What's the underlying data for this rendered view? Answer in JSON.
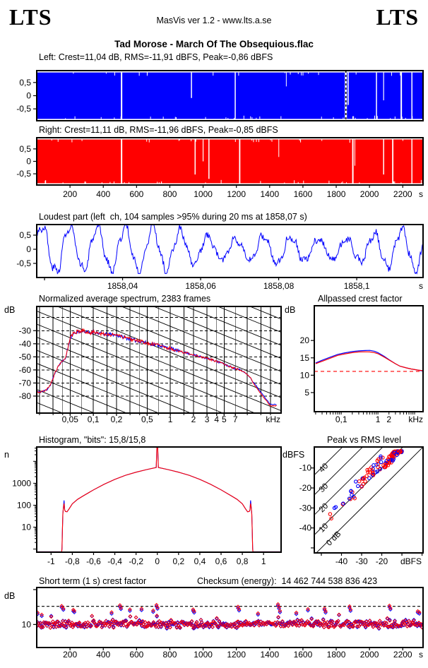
{
  "header": {
    "logo_left": "LTS",
    "logo_right": "LTS",
    "app_line": "MasVis ver 1.2 - www.lts.a.se",
    "title": "Tad Morose - March Of The Obsequious.flac"
  },
  "chart_data": {
    "time_axis": {
      "min": 0,
      "max": 2322,
      "ticks": [
        200,
        400,
        600,
        800,
        1000,
        1200,
        1400,
        1600,
        1800,
        2000,
        2200
      ],
      "tick_labels": [
        "200",
        "400",
        "600",
        "800",
        "1000",
        "1200",
        "1400",
        "1600",
        "1800",
        "2000",
        "2200"
      ],
      "unit": "s"
    },
    "wave_left": {
      "type": "area",
      "title": "Left: Crest=11,04 dB, RMS=-11,91 dBFS, Peak=-0,86 dBFS",
      "color": "#0000ff",
      "ylim": [
        -0.95,
        0.95
      ],
      "fill_amp": 0.88,
      "yticks": [
        0.5,
        0,
        -0.5
      ],
      "ytick_labels": [
        "0,5",
        "0",
        "-0,5"
      ],
      "gaps": [
        [
          510,
          2,
          1
        ],
        [
          930,
          1.5,
          0.55
        ],
        [
          1193,
          1.5,
          1
        ],
        [
          1500,
          1,
          0.3
        ],
        [
          1872,
          1.5,
          0.7
        ],
        [
          2042,
          1.5,
          1
        ],
        [
          2085,
          1.2,
          0.6
        ],
        [
          2191,
          2,
          1
        ],
        [
          2255,
          1.5,
          1
        ]
      ],
      "marker_t": 1858.07,
      "noise_seed": 9
    },
    "wave_right": {
      "type": "area",
      "title": "Right: Crest=11,11 dB, RMS=-11,96 dBFS, Peak=-0,85 dBFS",
      "color": "#ff0000",
      "ylim": [
        -0.95,
        0.95
      ],
      "fill_amp": 0.88,
      "yticks": [
        0.5,
        0,
        -0.5
      ],
      "ytick_labels": [
        "0,5",
        "0",
        "-0,5"
      ],
      "gaps": [
        [
          510,
          2,
          1
        ],
        [
          952,
          1.5,
          0.8
        ],
        [
          1000,
          1.2,
          0.5
        ],
        [
          1035,
          1.5,
          0.9
        ],
        [
          1220,
          1.8,
          1
        ],
        [
          1455,
          1,
          0.4
        ],
        [
          1900,
          2,
          1
        ],
        [
          1912,
          1,
          0.6
        ],
        [
          2085,
          1.5,
          0.8
        ],
        [
          2140,
          1.8,
          1
        ],
        [
          2255,
          1.5,
          1
        ]
      ],
      "noise_seed": 17
    },
    "loudest": {
      "type": "line",
      "title": "Loudest part (left  ch, 104 samples >95% during 20 ms at 1858,07 s)",
      "color": "#0000ff",
      "ylim": [
        -1.0,
        0.875
      ],
      "yticks": [
        0.5,
        0,
        -0.5
      ],
      "ytick_labels": [
        "0,5",
        "0",
        "-0,5"
      ],
      "xlim": [
        1858.018,
        1858.117
      ],
      "xticks": [
        1858.02,
        1858.04,
        1858.06,
        1858.08,
        1858.1
      ],
      "xtick_labels": [
        "",
        "1858,04",
        "1858,06",
        "1858,08",
        "1858,1"
      ],
      "xunit": "s",
      "seed": 3
    },
    "spectrum": {
      "type": "line",
      "title": "Normalized average spectrum, 2383 frames",
      "ylabel": "dB",
      "xunit": "kHz",
      "xlim": [
        0.0184,
        27.5
      ],
      "ylim": [
        -93,
        -11.5
      ],
      "yticks": [
        -30,
        -40,
        -50,
        -60,
        -70,
        -80
      ],
      "ytick_labels": [
        "-30",
        "-40",
        "-50",
        "-60",
        "-70",
        "-80"
      ],
      "grid_dashed_y": [
        -20,
        -30,
        -40,
        -50,
        -60,
        -70,
        -80
      ],
      "grid_v": [
        0.02,
        0.03,
        0.04,
        0.05,
        0.07,
        0.1,
        0.15,
        0.2,
        0.3,
        0.4,
        0.5,
        0.7,
        1,
        1.5,
        2,
        3,
        4,
        5,
        7,
        10,
        15,
        20
      ],
      "xticks": [
        0.05,
        0.1,
        0.2,
        0.5,
        1,
        2,
        3,
        4,
        5,
        7
      ],
      "xtick_labels": [
        "0,05",
        "0,1",
        "0,2",
        "0,5",
        "1",
        "2",
        "3",
        "4",
        "5",
        "7"
      ],
      "diag": {
        "slope_db_per_decade": -24,
        "intercepts": [
          -85,
          -75,
          -65,
          -55,
          -45,
          -35,
          -25,
          -15,
          -5,
          5,
          15,
          25,
          35,
          45,
          55,
          65
        ]
      },
      "noise": {
        "seed": 11,
        "mid": 1.4,
        "hi": 0.8,
        "lo": 0.35
      },
      "series": [
        {
          "name": "left",
          "color": "#0000ff",
          "hf_offset": 1.2
        },
        {
          "name": "right",
          "color": "#ff0000",
          "hf_offset": 0
        }
      ],
      "points": [
        [
          0.0184,
          -77
        ],
        [
          0.022,
          -76.5
        ],
        [
          0.025,
          -75
        ],
        [
          0.028,
          -71
        ],
        [
          0.032,
          -62
        ],
        [
          0.036,
          -56
        ],
        [
          0.04,
          -53
        ],
        [
          0.043,
          -52
        ],
        [
          0.046,
          -45
        ],
        [
          0.05,
          -36
        ],
        [
          0.053,
          -33
        ],
        [
          0.058,
          -32
        ],
        [
          0.062,
          -30.5
        ],
        [
          0.068,
          -31.5
        ],
        [
          0.072,
          -29.5
        ],
        [
          0.08,
          -31
        ],
        [
          0.09,
          -32
        ],
        [
          0.1,
          -30.5
        ],
        [
          0.11,
          -31.5
        ],
        [
          0.13,
          -32.5
        ],
        [
          0.15,
          -33
        ],
        [
          0.18,
          -33
        ],
        [
          0.2,
          -33.5
        ],
        [
          0.25,
          -35
        ],
        [
          0.3,
          -36.5
        ],
        [
          0.35,
          -37.5
        ],
        [
          0.4,
          -38
        ],
        [
          0.5,
          -39.5
        ],
        [
          0.6,
          -40.5
        ],
        [
          0.7,
          -41
        ],
        [
          0.8,
          -42
        ],
        [
          0.9,
          -43
        ],
        [
          1,
          -43.5
        ],
        [
          1.2,
          -45
        ],
        [
          1.5,
          -46.5
        ],
        [
          2,
          -48.5
        ],
        [
          2.5,
          -50
        ],
        [
          3,
          -51
        ],
        [
          4,
          -53.5
        ],
        [
          5,
          -55.5
        ],
        [
          6,
          -57.5
        ],
        [
          7,
          -59
        ],
        [
          8,
          -60
        ],
        [
          9,
          -61.5
        ],
        [
          10,
          -63.5
        ],
        [
          11,
          -66
        ],
        [
          12,
          -70
        ],
        [
          13,
          -73
        ],
        [
          14,
          -76
        ],
        [
          15,
          -78
        ],
        [
          16,
          -80.5
        ],
        [
          17,
          -82.5
        ],
        [
          18,
          -84
        ],
        [
          19,
          -86
        ],
        [
          20,
          -87.5
        ]
      ]
    },
    "allpass": {
      "type": "line",
      "title": "Allpassed crest factor",
      "ylabel": "dB",
      "xunit": "kHz",
      "xlim": [
        0.0184,
        17
      ],
      "ylim": [
        -0.5,
        30
      ],
      "yticks": [
        5,
        10,
        15,
        20
      ],
      "ytick_labels": [
        "5",
        "10",
        "15",
        "20"
      ],
      "xticks": [
        0.1,
        1,
        2
      ],
      "xtick_labels": [
        "0,1",
        "1",
        "2"
      ],
      "dashed_y": 11.1,
      "dashed_color": "#ff0000",
      "series": [
        {
          "color": "#0000ff",
          "points": [
            [
              0.02,
              13.5
            ],
            [
              0.03,
              14.3
            ],
            [
              0.05,
              15.2
            ],
            [
              0.08,
              16.0
            ],
            [
              0.12,
              16.4
            ],
            [
              0.2,
              16.8
            ],
            [
              0.3,
              17.0
            ],
            [
              0.45,
              17.1
            ],
            [
              0.6,
              17.15
            ],
            [
              0.8,
              16.9
            ],
            [
              1,
              16.5
            ],
            [
              1.5,
              15.4
            ],
            [
              2,
              14.5
            ],
            [
              3,
              13.3
            ],
            [
              4,
              12.6
            ],
            [
              6,
              12.1
            ],
            [
              8,
              11.8
            ],
            [
              12,
              11.5
            ],
            [
              17,
              11.2
            ]
          ]
        },
        {
          "color": "#ff0000",
          "points": [
            [
              0.02,
              13.3
            ],
            [
              0.03,
              14.0
            ],
            [
              0.05,
              14.9
            ],
            [
              0.08,
              15.7
            ],
            [
              0.12,
              16.1
            ],
            [
              0.2,
              16.5
            ],
            [
              0.3,
              16.7
            ],
            [
              0.45,
              16.75
            ],
            [
              0.6,
              16.7
            ],
            [
              0.8,
              16.5
            ],
            [
              1,
              16.2
            ],
            [
              1.5,
              15.2
            ],
            [
              2,
              14.4
            ],
            [
              3,
              13.3
            ],
            [
              4,
              12.6
            ],
            [
              6,
              12.1
            ],
            [
              8,
              11.8
            ],
            [
              12,
              11.5
            ],
            [
              17,
              11.3
            ]
          ]
        }
      ]
    },
    "histogram": {
      "type": "line",
      "title": "Histogram, \"bits\": 15,8/15,8",
      "ylabel": "n",
      "xlim": [
        -1.135,
        1.165
      ],
      "ylim_log": [
        0.72,
        45000
      ],
      "yticks": [
        10,
        100,
        1000
      ],
      "ytick_labels": [
        "10",
        "100",
        "1000"
      ],
      "xticks": [
        -1,
        -0.8,
        -0.6,
        -0.4,
        -0.2,
        0,
        0.2,
        0.4,
        0.6,
        0.8,
        1
      ],
      "xtick_labels": [
        "-1",
        "-0,8",
        "-0,6",
        "-0,4",
        "-0,2",
        "0",
        "0,2",
        "0,4",
        "0,6",
        "0,8",
        "1"
      ],
      "baseline": 0.75,
      "spike": {
        "half_width": 0.004,
        "top": 43000,
        "shoulder_x": 0.01,
        "shoulder_v": 5200
      },
      "dome": [
        [
          0.1,
          4200
        ],
        [
          0.2,
          3200
        ],
        [
          0.3,
          2300
        ],
        [
          0.4,
          1500
        ],
        [
          0.5,
          900
        ],
        [
          0.6,
          500
        ],
        [
          0.7,
          260
        ],
        [
          0.75,
          185
        ],
        [
          0.8,
          115
        ],
        [
          0.83,
          68
        ],
        [
          0.85,
          50
        ],
        [
          0.865,
          52
        ],
        [
          0.872,
          60
        ],
        [
          0.878,
          -1
        ],
        [
          0.884,
          80
        ],
        [
          0.889,
          40
        ],
        [
          0.893,
          8
        ],
        [
          0.897,
          1.1
        ],
        [
          0.9,
          0.75
        ]
      ],
      "series": [
        {
          "color": "#0000ff",
          "edge_spike": 165
        },
        {
          "color": "#ff0000",
          "edge_spike": 120
        }
      ]
    },
    "peak_rms": {
      "type": "scatter",
      "title": "Peak vs RMS level",
      "ylabel": "dBFS",
      "xunit": "dBFS",
      "xlim": [
        -53.5,
        0.5
      ],
      "ylim": [
        -52.5,
        0.5
      ],
      "xticks": [
        -50,
        -40,
        -30,
        -20,
        -10,
        0
      ],
      "xtick_labels": [
        "",
        "-40",
        "-30",
        "-20",
        "",
        ""
      ],
      "yticks": [
        -10,
        -20,
        -30,
        -40,
        -50
      ],
      "ytick_labels": [
        "-10",
        "-20",
        "-30",
        "-40",
        ""
      ],
      "crest_lines": [
        0,
        10,
        20,
        30,
        40
      ],
      "crest_labels": [
        "0 dB",
        "10",
        "20",
        "30",
        "40"
      ],
      "scatter_seed": 21,
      "counts": {
        "cluster": 70,
        "mid": 40,
        "tail": 14
      },
      "colors": {
        "a": "#ff0000",
        "b": "#0000ff"
      }
    },
    "short_term": {
      "type": "scatter",
      "title": "Short term (1 s) crest factor",
      "checksum": "Checksum (energy):  14 462 744 538 836 423",
      "ylabel": "dB",
      "ylim": [
        3.4,
        20.6
      ],
      "ytick": 10,
      "ytick_label": "10",
      "dashed_y": 15.2,
      "seed": 5,
      "base": 10.15,
      "spread": 1.3,
      "colors": {
        "a": "#ff0000",
        "b": "#0000ff"
      },
      "spikes": [
        [
          5,
          13.4
        ],
        [
          30,
          12.8
        ],
        [
          150,
          15.3
        ],
        [
          160,
          14.6
        ],
        [
          220,
          14.2
        ],
        [
          226,
          13.9
        ],
        [
          450,
          13.5
        ],
        [
          500,
          15.5
        ],
        [
          506,
          14.8
        ],
        [
          560,
          14.3
        ],
        [
          630,
          14.5
        ],
        [
          700,
          14.0
        ],
        [
          720,
          15.6
        ],
        [
          726,
          14.9
        ],
        [
          940,
          14.3
        ],
        [
          946,
          13.8
        ],
        [
          1210,
          15.1
        ],
        [
          1216,
          14.4
        ],
        [
          1330,
          13.2
        ],
        [
          1450,
          15.8
        ],
        [
          1456,
          15.0
        ],
        [
          1462,
          13.9
        ],
        [
          1560,
          13.4
        ],
        [
          1630,
          14.4
        ],
        [
          1730,
          14.6
        ],
        [
          1736,
          13.8
        ],
        [
          1880,
          15.2
        ],
        [
          1886,
          14.3
        ],
        [
          2120,
          15.4
        ],
        [
          2126,
          14.7
        ],
        [
          2290,
          13.8
        ],
        [
          2300,
          13.5
        ]
      ]
    }
  }
}
